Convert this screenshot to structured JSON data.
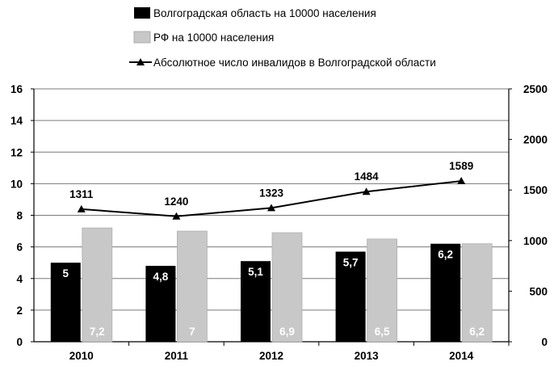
{
  "chart_data": {
    "type": "bar",
    "categories": [
      "2010",
      "2011",
      "2012",
      "2013",
      "2014"
    ],
    "series": [
      {
        "name": "Волгоградская область на 10000 населения",
        "kind": "bar",
        "axis": "left",
        "color": "#000000",
        "values": [
          5,
          4.8,
          5.1,
          5.7,
          6.2
        ],
        "labels": [
          "5",
          "4,8",
          "5,1",
          "5,7",
          "6,2"
        ]
      },
      {
        "name": "РФ на 10000 населения",
        "kind": "bar",
        "axis": "left",
        "color": "#c8c8c8",
        "values": [
          7.2,
          7,
          6.9,
          6.5,
          6.2
        ],
        "labels": [
          "7,2",
          "7",
          "6,9",
          "6,5",
          "6,2"
        ]
      },
      {
        "name": "Абсолютное число инвалидов в Волгоградской области",
        "kind": "line",
        "axis": "right",
        "color": "#000000",
        "marker": "triangle",
        "values": [
          1311,
          1240,
          1323,
          1484,
          1589
        ],
        "labels": [
          "1311",
          "1240",
          "1323",
          "1484",
          "1589"
        ]
      }
    ],
    "y_left": {
      "min": 0,
      "max": 16,
      "ticks": [
        "0",
        "2",
        "4",
        "6",
        "8",
        "10",
        "12",
        "14",
        "16"
      ]
    },
    "y_right": {
      "min": 0,
      "max": 2500,
      "ticks": [
        "0",
        "500",
        "1000",
        "1500",
        "2000",
        "2500"
      ]
    },
    "grid": true,
    "legend_position": "top-left"
  }
}
